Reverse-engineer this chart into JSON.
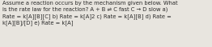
{
  "text": "Assume a reaction occurs by the mechanism given below. What\nis the rate law for the reaction? A + B ⇌ C fast C → D slow a)\nRate = k[A][B][C] b) Rate = k[A]2 c) Rate = k[A][B] d) Rate =\nk[A][B]/[D] e) Rate = k[A]",
  "fontsize": 4.9,
  "bg_color": "#e8e5df",
  "text_color": "#2a2a2a",
  "fig_width": 2.62,
  "fig_height": 0.59,
  "dpi": 100
}
